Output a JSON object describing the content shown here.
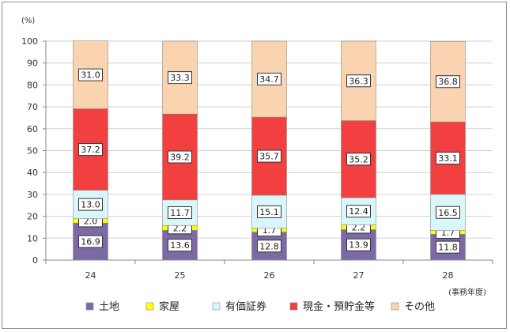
{
  "chart_data": {
    "type": "bar",
    "stacked": true,
    "y_unit": "(%)",
    "x_unit": "(事務年度)",
    "ylim": [
      0,
      100
    ],
    "y_ticks": [
      0,
      10,
      20,
      30,
      40,
      50,
      60,
      70,
      80,
      90,
      100
    ],
    "grid": true,
    "legend_position": "bottom",
    "categories": [
      "24",
      "25",
      "26",
      "27",
      "28"
    ],
    "series": [
      {
        "name": "土地",
        "color": "#7b6aa6",
        "values": [
          16.9,
          13.6,
          12.8,
          13.9,
          11.8
        ]
      },
      {
        "name": "家屋",
        "color": "#ffff00",
        "values": [
          2.0,
          2.2,
          1.7,
          2.2,
          1.7
        ]
      },
      {
        "name": "有価証券",
        "color": "#d9f7fb",
        "values": [
          13.0,
          11.7,
          15.1,
          12.4,
          16.5
        ]
      },
      {
        "name": "現金・預貯金等",
        "color": "#f24040",
        "values": [
          37.2,
          39.2,
          35.7,
          35.2,
          33.1
        ]
      },
      {
        "name": "その他",
        "color": "#fad4b0",
        "values": [
          31.0,
          33.3,
          34.7,
          36.3,
          36.8
        ]
      }
    ]
  }
}
